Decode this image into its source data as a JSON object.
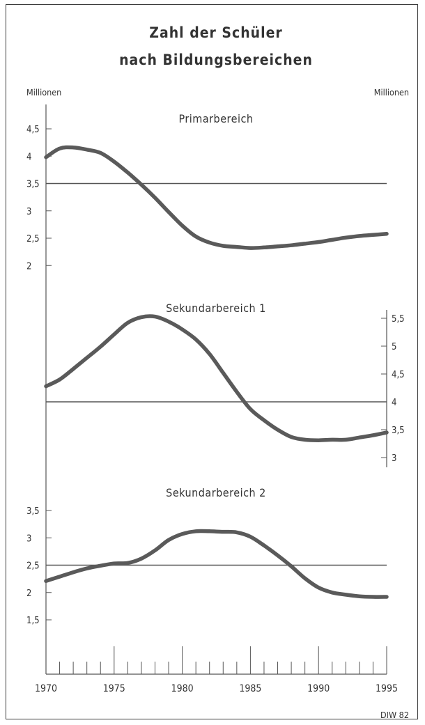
{
  "chart_data": {
    "type": "line",
    "title": [
      "Zahl der Schüler",
      "nach Bildungsbereichen"
    ],
    "left_unit_label": "Millionen",
    "right_unit_label": "Millionen",
    "credit": "DIW 82",
    "x_ticks": [
      "1970",
      "1975",
      "1980",
      "1985",
      "1990",
      "1995"
    ],
    "x_range": [
      1970,
      1995
    ],
    "colors": {
      "line": "#5a5a5a",
      "axis": "#555555",
      "text": "#333333"
    },
    "panels": [
      {
        "name": "Primarbereich",
        "axis_side": "left",
        "y_range": [
          2,
          4.5
        ],
        "y_ticks": [
          {
            "value": 2,
            "label": "2"
          },
          {
            "value": 2.5,
            "label": "2,5"
          },
          {
            "value": 3,
            "label": "3"
          },
          {
            "value": 3.5,
            "label": "3,5"
          },
          {
            "value": 4,
            "label": "4"
          },
          {
            "value": 4.5,
            "label": "4,5"
          }
        ],
        "reference_line": 3.5,
        "points": [
          [
            1970,
            3.98
          ],
          [
            1971,
            4.14
          ],
          [
            1972,
            4.16
          ],
          [
            1973,
            4.12
          ],
          [
            1974,
            4.06
          ],
          [
            1975,
            3.9
          ],
          [
            1976,
            3.7
          ],
          [
            1977,
            3.48
          ],
          [
            1978,
            3.24
          ],
          [
            1979,
            2.98
          ],
          [
            1980,
            2.73
          ],
          [
            1981,
            2.53
          ],
          [
            1982,
            2.42
          ],
          [
            1983,
            2.36
          ],
          [
            1984,
            2.34
          ],
          [
            1985,
            2.32
          ],
          [
            1986,
            2.33
          ],
          [
            1987,
            2.35
          ],
          [
            1988,
            2.37
          ],
          [
            1989,
            2.4
          ],
          [
            1990,
            2.43
          ],
          [
            1991,
            2.47
          ],
          [
            1992,
            2.51
          ],
          [
            1993,
            2.54
          ],
          [
            1994,
            2.56
          ],
          [
            1995,
            2.58
          ]
        ]
      },
      {
        "name": "Sekundarbereich 1",
        "axis_side": "right",
        "y_range": [
          3,
          5.5
        ],
        "y_ticks": [
          {
            "value": 3,
            "label": "3"
          },
          {
            "value": 3.5,
            "label": "3,5"
          },
          {
            "value": 4,
            "label": "4"
          },
          {
            "value": 4.5,
            "label": "4,5"
          },
          {
            "value": 5,
            "label": "5"
          },
          {
            "value": 5.5,
            "label": "5,5"
          }
        ],
        "reference_line": 4,
        "points": [
          [
            1970,
            4.28
          ],
          [
            1971,
            4.4
          ],
          [
            1972,
            4.59
          ],
          [
            1973,
            4.79
          ],
          [
            1974,
            4.99
          ],
          [
            1975,
            5.21
          ],
          [
            1976,
            5.42
          ],
          [
            1977,
            5.52
          ],
          [
            1978,
            5.53
          ],
          [
            1979,
            5.44
          ],
          [
            1980,
            5.3
          ],
          [
            1981,
            5.12
          ],
          [
            1982,
            4.86
          ],
          [
            1983,
            4.52
          ],
          [
            1984,
            4.18
          ],
          [
            1985,
            3.87
          ],
          [
            1986,
            3.67
          ],
          [
            1987,
            3.5
          ],
          [
            1988,
            3.37
          ],
          [
            1989,
            3.32
          ],
          [
            1990,
            3.31
          ],
          [
            1991,
            3.32
          ],
          [
            1992,
            3.32
          ],
          [
            1993,
            3.36
          ],
          [
            1994,
            3.4
          ],
          [
            1995,
            3.45
          ]
        ]
      },
      {
        "name": "Sekundarbereich 2",
        "axis_side": "left",
        "y_range": [
          1.5,
          3.5
        ],
        "y_ticks": [
          {
            "value": 1.5,
            "label": "1,5"
          },
          {
            "value": 2,
            "label": "2"
          },
          {
            "value": 2.5,
            "label": "2,5"
          },
          {
            "value": 3,
            "label": "3"
          },
          {
            "value": 3.5,
            "label": "3,5"
          }
        ],
        "reference_line": 2.5,
        "points": [
          [
            1970,
            2.21
          ],
          [
            1971,
            2.29
          ],
          [
            1972,
            2.37
          ],
          [
            1973,
            2.44
          ],
          [
            1974,
            2.49
          ],
          [
            1975,
            2.53
          ],
          [
            1976,
            2.54
          ],
          [
            1977,
            2.62
          ],
          [
            1978,
            2.77
          ],
          [
            1979,
            2.96
          ],
          [
            1980,
            3.07
          ],
          [
            1981,
            3.12
          ],
          [
            1982,
            3.12
          ],
          [
            1983,
            3.11
          ],
          [
            1984,
            3.1
          ],
          [
            1985,
            3.02
          ],
          [
            1986,
            2.86
          ],
          [
            1987,
            2.68
          ],
          [
            1988,
            2.48
          ],
          [
            1989,
            2.26
          ],
          [
            1990,
            2.09
          ],
          [
            1991,
            2.0
          ],
          [
            1992,
            1.96
          ],
          [
            1993,
            1.93
          ],
          [
            1994,
            1.92
          ],
          [
            1995,
            1.92
          ]
        ]
      }
    ]
  }
}
